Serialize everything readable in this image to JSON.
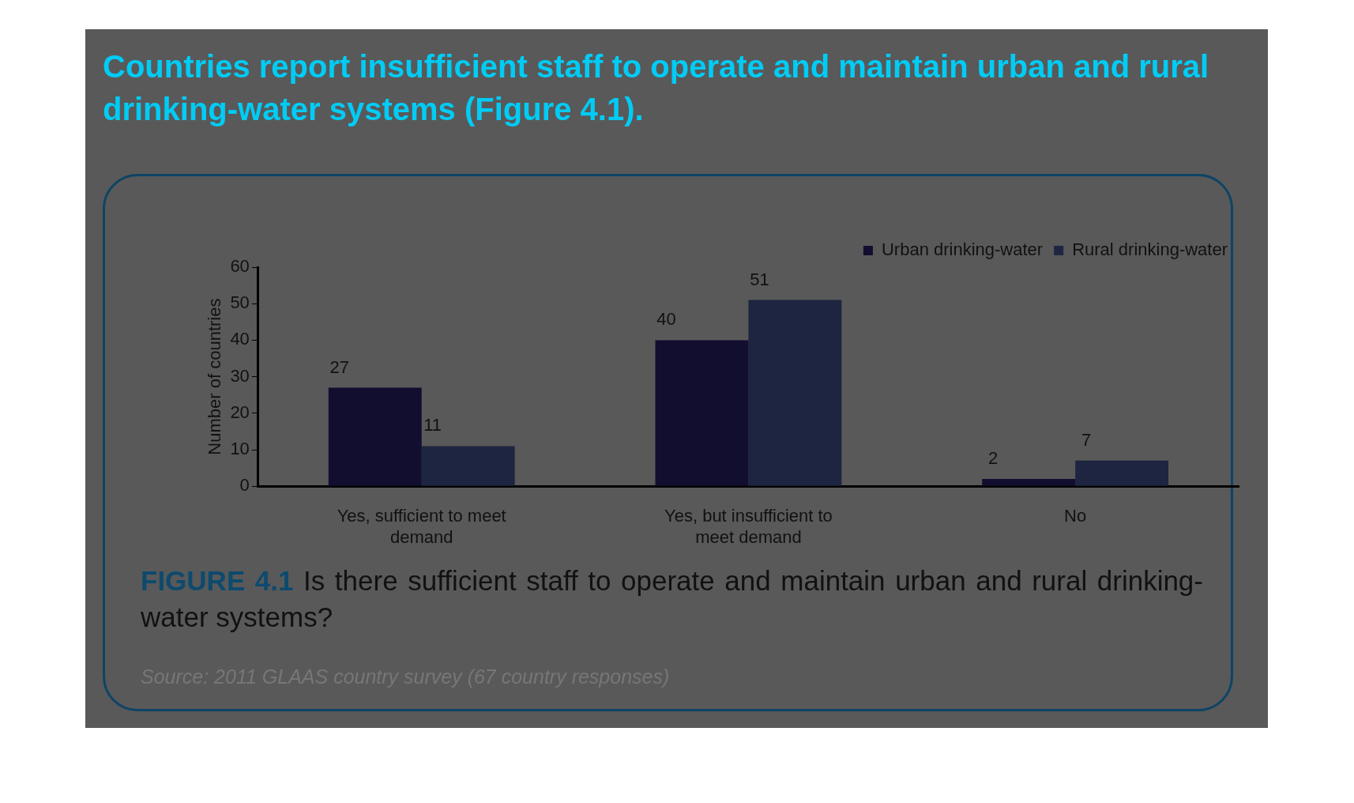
{
  "chart_data": {
    "type": "bar",
    "title": "Countries report insufficient staff to operate and maintain urban and rural drinking-water systems (Figure 4.1).",
    "categories": [
      "Yes, sufficient to meet demand",
      "Yes, but insufficient to meet demand",
      "No"
    ],
    "series": [
      {
        "name": "Urban drinking-water",
        "color": "#120e30",
        "values": [
          27,
          40,
          2
        ]
      },
      {
        "name": "Rural drinking-water",
        "color": "#1e2540",
        "values": [
          11,
          51,
          7
        ]
      }
    ],
    "ylabel": "Number of countries",
    "ylim": [
      0,
      60
    ],
    "yticks": [
      0,
      10,
      20,
      30,
      40,
      50,
      60
    ],
    "grid": false,
    "legend": "top right",
    "data_labels": true,
    "annotations": [
      "FIGURE 4.1",
      "Is there sufficient staff to operate and maintain urban and rural drinking-water systems?",
      "Source: 2011 GLAAS country survey (67 country responses)"
    ]
  }
}
